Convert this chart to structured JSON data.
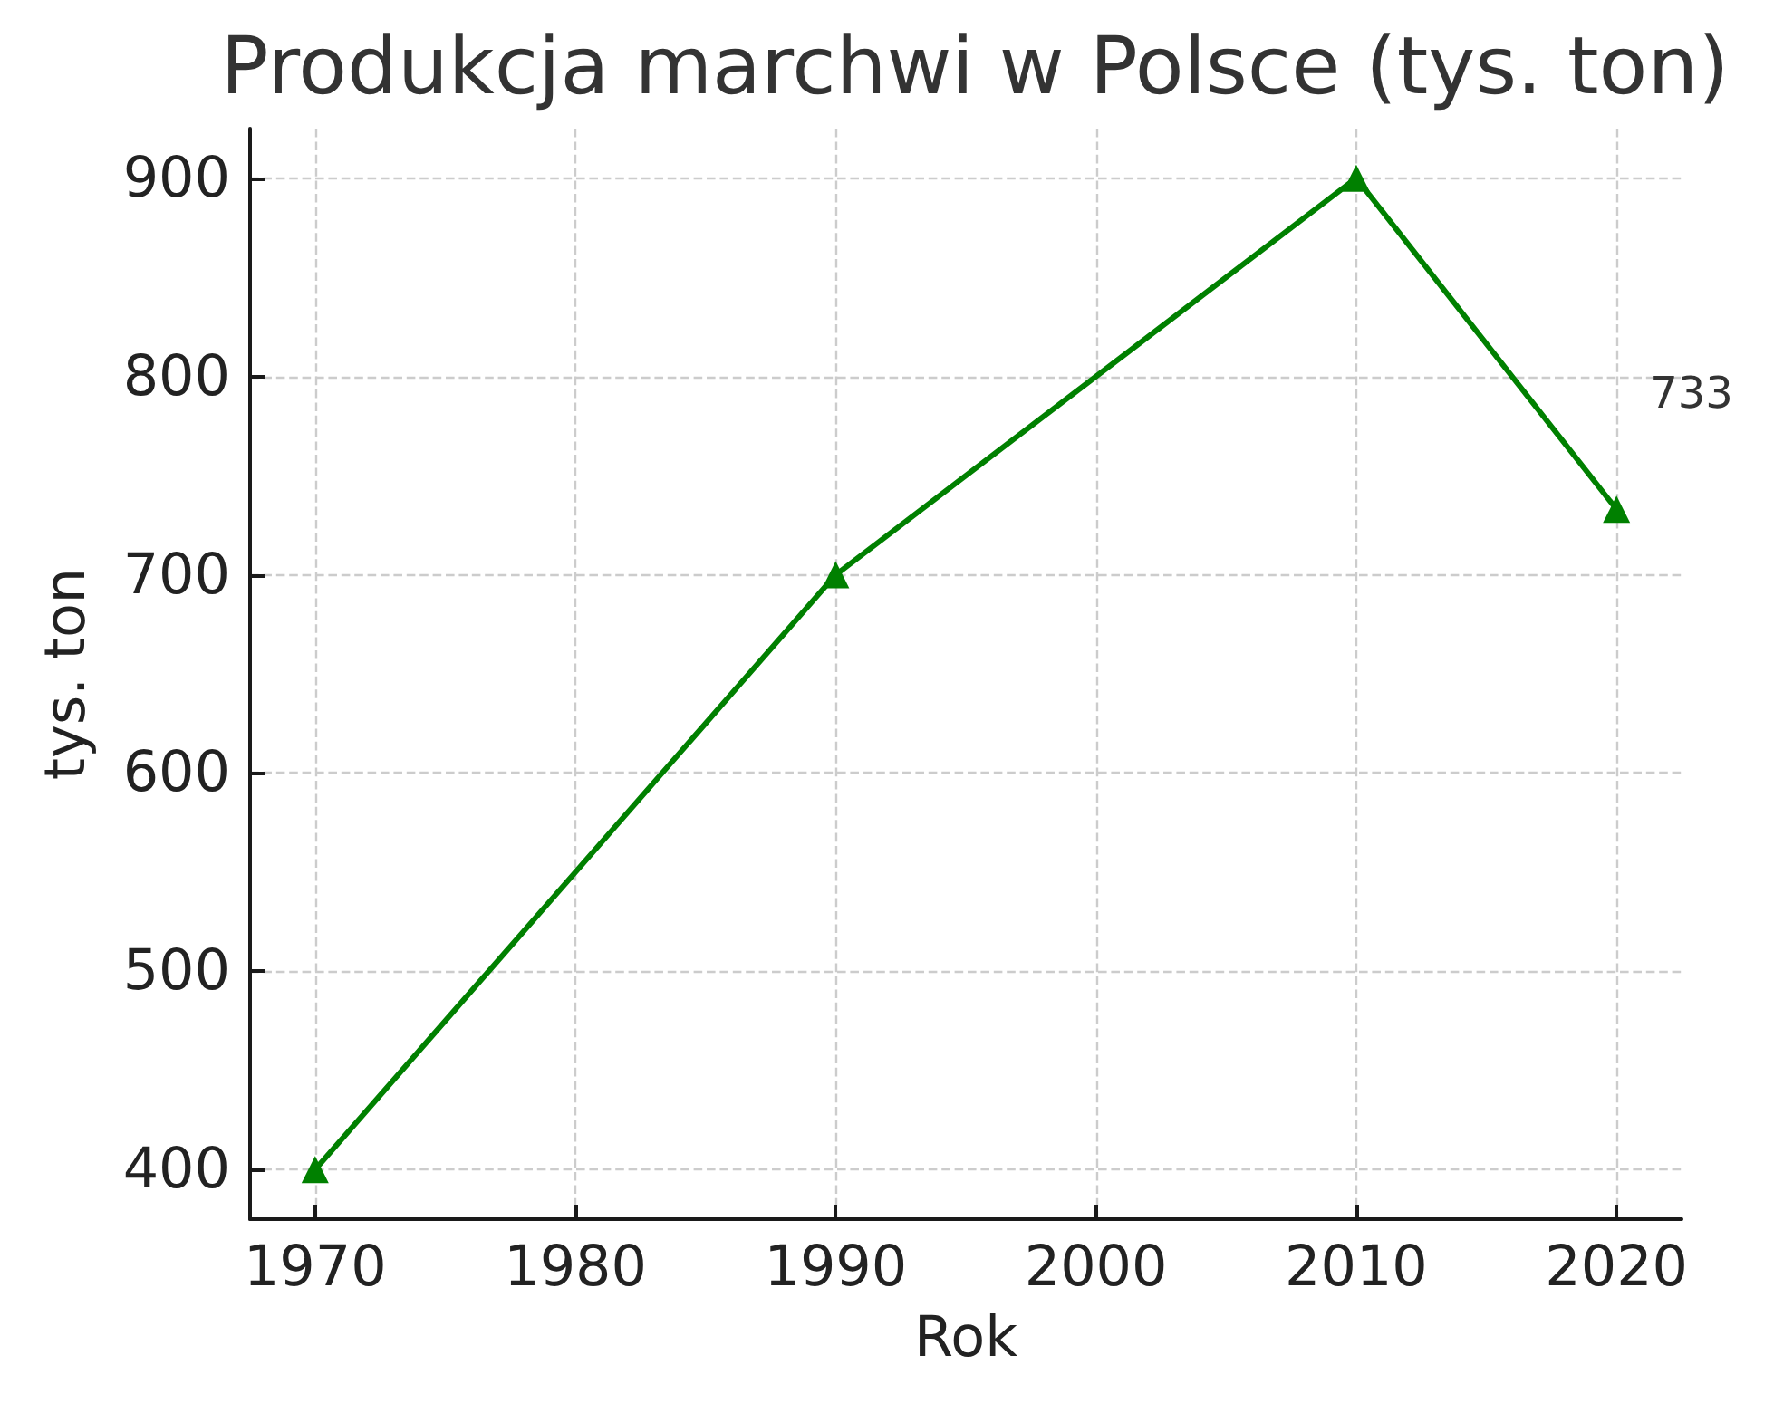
{
  "chart_data": {
    "type": "line",
    "title": "Produkcja marchwi w Polsce (tys. ton)",
    "xlabel": "Rok",
    "ylabel": "tys. ton",
    "x": [
      1970,
      1990,
      2010,
      2020
    ],
    "series": [
      {
        "color": "#008000",
        "values": [
          400,
          700,
          900,
          733
        ],
        "value_labels": [
          null,
          null,
          null,
          "733"
        ]
      }
    ],
    "xlim": [
      1967.5,
      2022.5
    ],
    "xticks": [
      1970,
      1980,
      1990,
      2000,
      2010,
      2020
    ],
    "ylim": [
      375,
      925
    ],
    "yticks": [
      400,
      500,
      600,
      700,
      800,
      900
    ],
    "grid": true,
    "marker": "triangle",
    "line_style": "solid"
  }
}
